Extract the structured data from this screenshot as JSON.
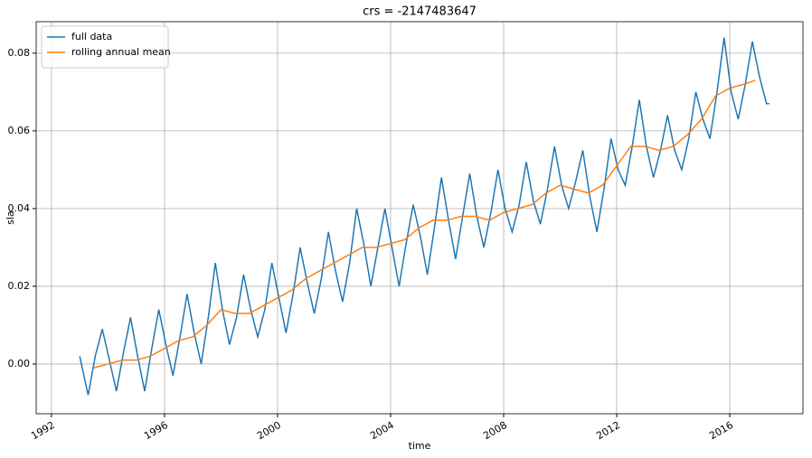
{
  "chart_data": {
    "type": "line",
    "title": "crs = -2147483647",
    "x_label": "time",
    "y_label": "sla",
    "xlim": [
      1991.46,
      2018.59
    ],
    "xticks": [
      1992,
      1996,
      2000,
      2004,
      2008,
      2012,
      2016
    ],
    "ylim": [
      -0.0128,
      0.0881
    ],
    "yticks": [
      {
        "value": 0,
        "label": "0.00"
      },
      0.02,
      0.04,
      0.06,
      0.08
    ],
    "grid": true,
    "legend": "upper left",
    "series": [
      {
        "name": "full data",
        "color": "#1f77b4",
        "x": [
          1993.0,
          1993.3,
          1993.55,
          1993.8,
          1994.05,
          1994.3,
          1994.55,
          1994.8,
          1995.05,
          1995.3,
          1995.55,
          1995.8,
          1996.05,
          1996.3,
          1996.55,
          1996.8,
          1997.05,
          1997.3,
          1997.55,
          1997.8,
          1998.05,
          1998.3,
          1998.55,
          1998.8,
          1999.05,
          1999.3,
          1999.55,
          1999.8,
          2000.05,
          2000.3,
          2000.55,
          2000.8,
          2001.05,
          2001.3,
          2001.55,
          2001.8,
          2002.05,
          2002.3,
          2002.55,
          2002.8,
          2003.05,
          2003.3,
          2003.55,
          2003.8,
          2004.05,
          2004.3,
          2004.55,
          2004.8,
          2005.05,
          2005.3,
          2005.55,
          2005.8,
          2006.05,
          2006.3,
          2006.55,
          2006.8,
          2007.05,
          2007.3,
          2007.55,
          2007.8,
          2008.05,
          2008.3,
          2008.55,
          2008.8,
          2009.05,
          2009.3,
          2009.55,
          2009.8,
          2010.05,
          2010.3,
          2010.55,
          2010.8,
          2011.05,
          2011.3,
          2011.55,
          2011.8,
          2012.05,
          2012.3,
          2012.55,
          2012.8,
          2013.05,
          2013.3,
          2013.55,
          2013.8,
          2014.05,
          2014.3,
          2014.55,
          2014.8,
          2015.05,
          2015.3,
          2015.55,
          2015.8,
          2016.05,
          2016.3,
          2016.55,
          2016.8,
          2017.05,
          2017.3,
          2017.4
        ],
        "values": [
          0.002,
          -0.008,
          0.002,
          0.009,
          0.001,
          -0.007,
          0.003,
          0.012,
          0.002,
          -0.007,
          0.004,
          0.014,
          0.005,
          -0.003,
          0.007,
          0.018,
          0.008,
          0.0,
          0.012,
          0.026,
          0.014,
          0.005,
          0.012,
          0.023,
          0.014,
          0.007,
          0.014,
          0.026,
          0.017,
          0.008,
          0.018,
          0.03,
          0.021,
          0.013,
          0.022,
          0.034,
          0.024,
          0.016,
          0.026,
          0.04,
          0.031,
          0.02,
          0.03,
          0.04,
          0.03,
          0.02,
          0.031,
          0.041,
          0.033,
          0.023,
          0.035,
          0.048,
          0.037,
          0.027,
          0.038,
          0.049,
          0.038,
          0.03,
          0.039,
          0.05,
          0.04,
          0.034,
          0.041,
          0.052,
          0.042,
          0.036,
          0.045,
          0.056,
          0.046,
          0.04,
          0.047,
          0.055,
          0.043,
          0.034,
          0.045,
          0.058,
          0.05,
          0.046,
          0.056,
          0.068,
          0.056,
          0.048,
          0.055,
          0.064,
          0.055,
          0.05,
          0.058,
          0.07,
          0.063,
          0.058,
          0.07,
          0.084,
          0.07,
          0.063,
          0.072,
          0.083,
          0.074,
          0.067,
          0.067
        ]
      },
      {
        "name": "rolling annual mean",
        "color": "#ff7f0e",
        "x": [
          1993.5,
          1994.0,
          1994.5,
          1995.0,
          1995.5,
          1996.0,
          1996.5,
          1997.0,
          1997.5,
          1998.0,
          1998.5,
          1999.0,
          1999.5,
          2000.0,
          2000.5,
          2001.0,
          2001.5,
          2002.0,
          2002.5,
          2003.0,
          2003.5,
          2004.0,
          2004.5,
          2005.0,
          2005.5,
          2006.0,
          2006.5,
          2007.0,
          2007.5,
          2008.0,
          2008.5,
          2009.0,
          2009.5,
          2010.0,
          2010.5,
          2011.0,
          2011.5,
          2012.0,
          2012.5,
          2013.0,
          2013.5,
          2014.0,
          2014.5,
          2015.0,
          2015.5,
          2016.0,
          2016.5,
          2016.9
        ],
        "values": [
          -0.001,
          0.0,
          0.001,
          0.001,
          0.002,
          0.004,
          0.006,
          0.007,
          0.01,
          0.014,
          0.013,
          0.013,
          0.015,
          0.017,
          0.019,
          0.022,
          0.024,
          0.026,
          0.028,
          0.03,
          0.03,
          0.031,
          0.032,
          0.035,
          0.037,
          0.037,
          0.038,
          0.038,
          0.037,
          0.039,
          0.04,
          0.041,
          0.044,
          0.046,
          0.045,
          0.044,
          0.046,
          0.051,
          0.056,
          0.056,
          0.055,
          0.056,
          0.059,
          0.063,
          0.069,
          0.071,
          0.072,
          0.073
        ]
      }
    ]
  }
}
